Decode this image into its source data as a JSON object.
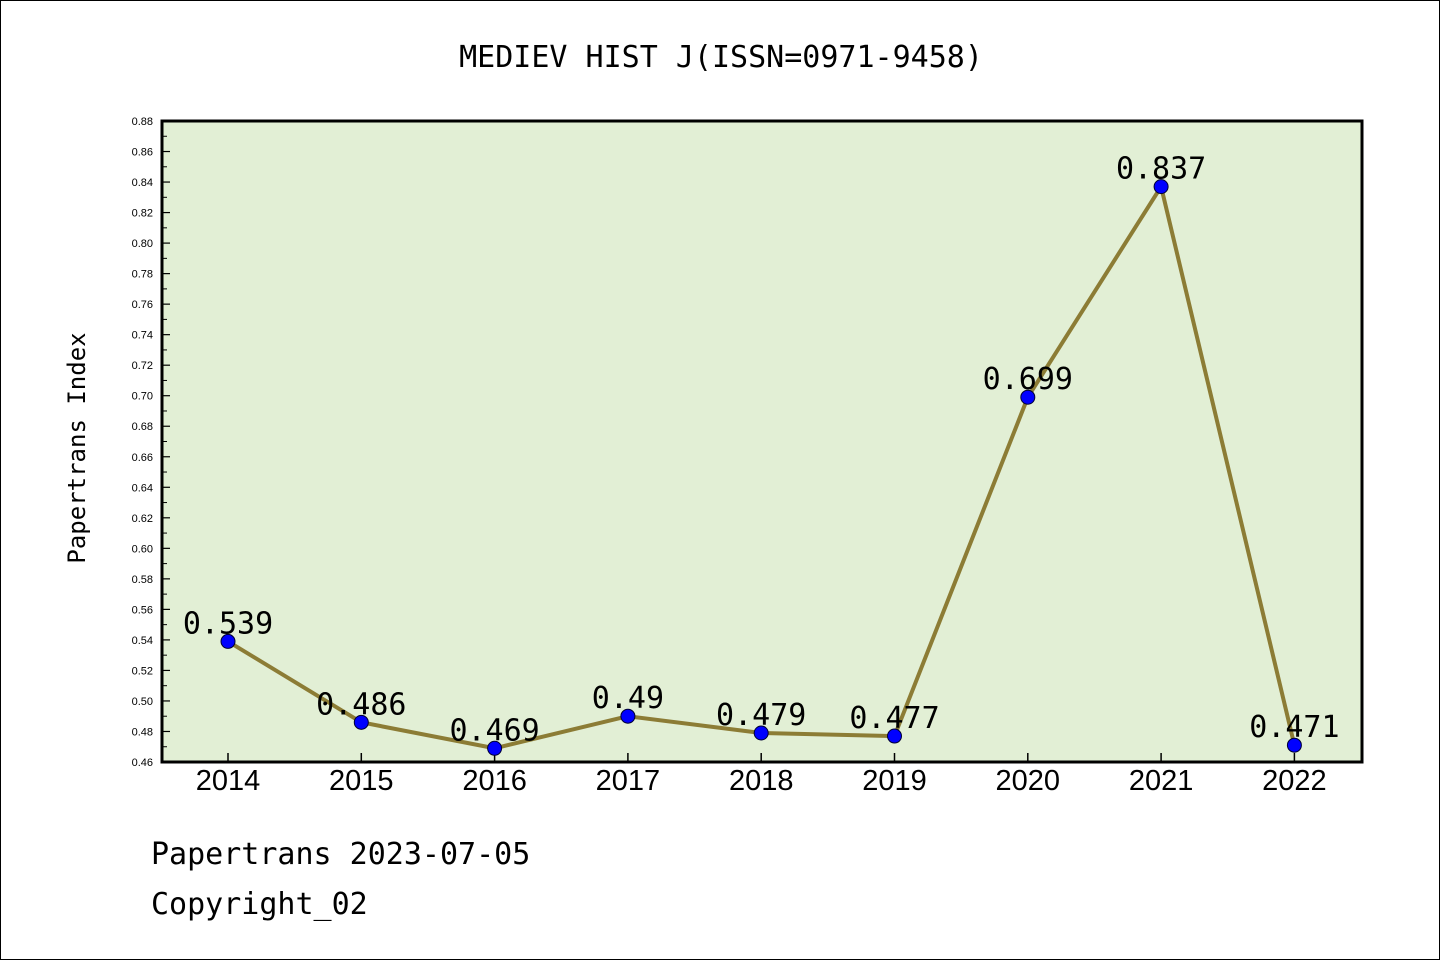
{
  "chart_data": {
    "type": "line",
    "title": "MEDIEV HIST J(ISSN=0971-9458)",
    "xlabel": "",
    "ylabel": "Papertrans Index",
    "categories": [
      "2014",
      "2015",
      "2016",
      "2017",
      "2018",
      "2019",
      "2020",
      "2021",
      "2022"
    ],
    "values": [
      0.539,
      0.486,
      0.469,
      0.49,
      0.479,
      0.477,
      0.699,
      0.837,
      0.471
    ],
    "data_labels": [
      "0.539",
      "0.486",
      "0.469",
      "0.49",
      "0.479",
      "0.477",
      "0.699",
      "0.837",
      "0.471"
    ],
    "ylim": [
      0.46,
      0.88
    ],
    "yticks": [
      "0.46",
      "0.48",
      "0.50",
      "0.52",
      "0.54",
      "0.56",
      "0.58",
      "0.60",
      "0.62",
      "0.64",
      "0.66",
      "0.68",
      "0.70",
      "0.72",
      "0.74",
      "0.76",
      "0.78",
      "0.80",
      "0.82",
      "0.84",
      "0.86",
      "0.88"
    ],
    "grid": false,
    "legend": "none",
    "colors": {
      "plot_background": "#e2efd5",
      "line": "#8c7c35",
      "marker": "#0000ff"
    }
  },
  "footer": {
    "line1": "Papertrans 2023-07-05",
    "line2": "Copyright_02"
  }
}
